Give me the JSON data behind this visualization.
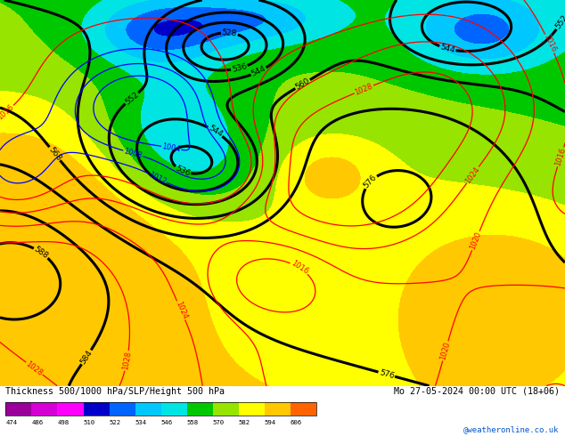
{
  "title_left": "Thickness 500/1000 hPa/SLP/Height 500 hPa",
  "title_right": "Mo 27-05-2024 00:00 UTC (18+06)",
  "credit": "@weatheronline.co.uk",
  "colorbar_values": [
    474,
    486,
    498,
    510,
    522,
    534,
    546,
    558,
    570,
    582,
    594,
    606
  ],
  "colorbar_colors": [
    "#9b009b",
    "#d400d4",
    "#ff00ff",
    "#0000c8",
    "#0064ff",
    "#00c8ff",
    "#00e4e4",
    "#00c800",
    "#96e400",
    "#ffff00",
    "#ffc800",
    "#ff6400"
  ],
  "bg_color": "#ffffff",
  "text_color": "#000000",
  "fig_width": 6.34,
  "fig_height": 4.9,
  "dpi": 100
}
